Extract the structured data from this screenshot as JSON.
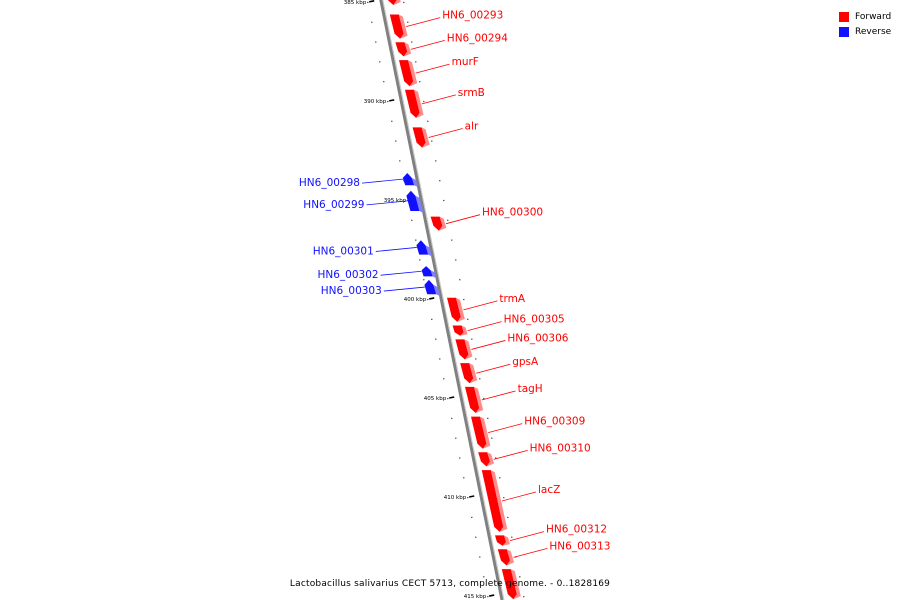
{
  "legend": [
    {
      "label": "Forward",
      "color": "#ff0000"
    },
    {
      "label": "Reverse",
      "color": "#1010ff"
    }
  ],
  "caption": "Lactobacillus salivarius CECT 5713, complete genome. - 0..1828169",
  "colors": {
    "forward": "#ff0000",
    "reverse": "#1010ff",
    "backbone": "#808080"
  },
  "scale": {
    "unit": "kbp",
    "start_kbp": 384.2,
    "end_kbp": 415.2
  },
  "ticks": [
    {
      "kbp": 385,
      "label": "385 kbp"
    },
    {
      "kbp": 390,
      "label": "390 kbp"
    },
    {
      "kbp": 395,
      "label": "395 kbp"
    },
    {
      "kbp": 400,
      "label": "400 kbp"
    },
    {
      "kbp": 405,
      "label": "405 kbp"
    },
    {
      "kbp": 410,
      "label": "410 kbp"
    },
    {
      "kbp": 415,
      "label": "415 kbp"
    }
  ],
  "genes": [
    {
      "name": "",
      "strand": "forward",
      "start_kbp": 384.2,
      "end_kbp": 385.2
    },
    {
      "name": "HN6_00293",
      "strand": "forward",
      "start_kbp": 385.6,
      "end_kbp": 386.9
    },
    {
      "name": "HN6_00294",
      "strand": "forward",
      "start_kbp": 387.0,
      "end_kbp": 387.8
    },
    {
      "name": "murF",
      "strand": "forward",
      "start_kbp": 387.9,
      "end_kbp": 389.3
    },
    {
      "name": "srmB",
      "strand": "forward",
      "start_kbp": 389.4,
      "end_kbp": 390.9
    },
    {
      "name": "alr",
      "strand": "forward",
      "start_kbp": 391.3,
      "end_kbp": 392.4
    },
    {
      "name": "HN6_00298",
      "strand": "reverse",
      "start_kbp": 393.6,
      "end_kbp": 394.3
    },
    {
      "name": "HN6_00299",
      "strand": "reverse",
      "start_kbp": 394.5,
      "end_kbp": 395.6
    },
    {
      "name": "HN6_00300",
      "strand": "forward",
      "start_kbp": 395.8,
      "end_kbp": 396.6
    },
    {
      "name": "HN6_00301",
      "strand": "reverse",
      "start_kbp": 397.0,
      "end_kbp": 397.8
    },
    {
      "name": "HN6_00302",
      "strand": "reverse",
      "start_kbp": 398.3,
      "end_kbp": 398.9
    },
    {
      "name": "HN6_00303",
      "strand": "reverse",
      "start_kbp": 399.0,
      "end_kbp": 399.8
    },
    {
      "name": "trmA",
      "strand": "forward",
      "start_kbp": 399.9,
      "end_kbp": 401.2
    },
    {
      "name": "HN6_00305",
      "strand": "forward",
      "start_kbp": 401.3,
      "end_kbp": 401.9
    },
    {
      "name": "HN6_00306",
      "strand": "forward",
      "start_kbp": 402.0,
      "end_kbp": 403.1
    },
    {
      "name": "gpsA",
      "strand": "forward",
      "start_kbp": 403.2,
      "end_kbp": 404.3
    },
    {
      "name": "tagH",
      "strand": "forward",
      "start_kbp": 404.4,
      "end_kbp": 405.8
    },
    {
      "name": "HN6_00309",
      "strand": "forward",
      "start_kbp": 405.9,
      "end_kbp": 407.6
    },
    {
      "name": "HN6_00310",
      "strand": "forward",
      "start_kbp": 407.7,
      "end_kbp": 408.5
    },
    {
      "name": "lacZ",
      "strand": "forward",
      "start_kbp": 408.6,
      "end_kbp": 411.8
    },
    {
      "name": "HN6_00312",
      "strand": "forward",
      "start_kbp": 411.9,
      "end_kbp": 412.5
    },
    {
      "name": "HN6_00313",
      "strand": "forward",
      "start_kbp": 412.6,
      "end_kbp": 413.5
    },
    {
      "name": "",
      "strand": "forward",
      "start_kbp": 413.6,
      "end_kbp": 415.2
    }
  ]
}
